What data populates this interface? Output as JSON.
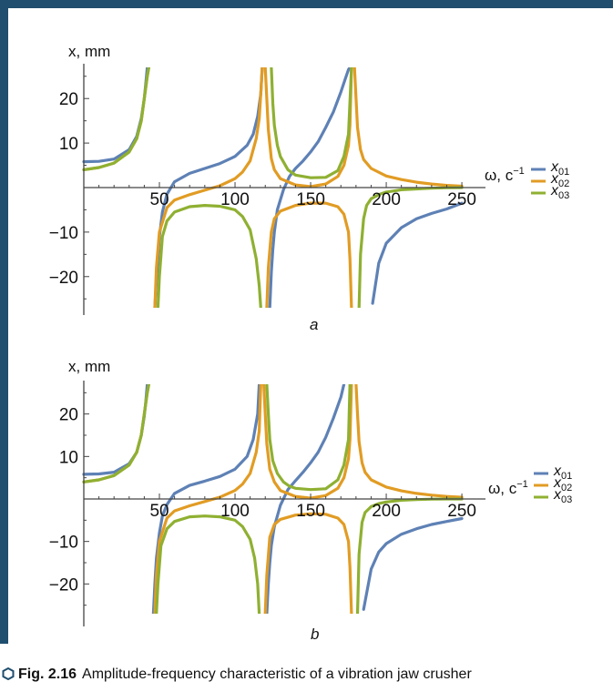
{
  "colors": {
    "frame": "#1f4e6e",
    "series": [
      "#5e81b5",
      "#e19c24",
      "#8fb032"
    ]
  },
  "caption": {
    "label": "Fig. 2.16",
    "text": "Amplitude-frequency characteristic of a vibration jaw crusher"
  },
  "chart_data": [
    {
      "type": "line",
      "panel_label": "a",
      "xlabel": "ω, c",
      "xlabel_sup": "−1",
      "ylabel": "x, mm",
      "xlim": [
        0,
        262
      ],
      "ylim": [
        -27,
        27
      ],
      "xticks": [
        50,
        100,
        150,
        200,
        250
      ],
      "xtick_labels": [
        "50",
        "100",
        "150",
        "200",
        "250"
      ],
      "yticks": [
        -20,
        -10,
        10,
        20
      ],
      "ytick_labels": [
        "−20",
        "−10",
        "10",
        "20"
      ],
      "grid": false,
      "legend_position": "right",
      "series": [
        {
          "name": "x",
          "subscript": "01",
          "color": "#5e81b5",
          "branches": [
            {
              "x": [
                0,
                10,
                20,
                30,
                35,
                38,
                40,
                41,
                42
              ],
              "y": [
                5.8,
                5.9,
                6.4,
                8.5,
                11.5,
                15.5,
                20,
                23.5,
                27
              ]
            },
            {
              "x": [
                47,
                48,
                49,
                50,
                52,
                55,
                60,
                70,
                80,
                90,
                100,
                108,
                112,
                115,
                117,
                118
              ],
              "y": [
                -27,
                -21,
                -16,
                -11,
                -5.5,
                -1.5,
                1.3,
                3.2,
                4.3,
                5.4,
                7,
                9.5,
                12,
                16,
                21,
                27
              ]
            },
            {
              "x": [
                123,
                124,
                125,
                126,
                128,
                132,
                136,
                140,
                145,
                150,
                155,
                160,
                165,
                170,
                173,
                175,
                176
              ],
              "y": [
                -27,
                -19,
                -14,
                -10,
                -5,
                -0.5,
                2.5,
                4.3,
                6,
                8,
                10.3,
                13.5,
                17,
                21.5,
                24.5,
                26.5,
                27
              ]
            },
            {
              "x": [
                191,
                195,
                200,
                210,
                220,
                230,
                240,
                250
              ],
              "y": [
                -26,
                -17,
                -12.5,
                -9,
                -7,
                -5.8,
                -4.8,
                -3.5
              ]
            }
          ]
        },
        {
          "name": "x",
          "subscript": "02",
          "color": "#e19c24",
          "branches": [
            {
              "x": [
                0,
                10,
                20,
                30,
                35,
                38,
                40,
                42,
                43
              ],
              "y": [
                4,
                4.5,
                5.5,
                8,
                11,
                15,
                20,
                25,
                27
              ]
            },
            {
              "x": [
                47,
                48,
                50,
                55,
                60,
                70,
                80,
                90,
                100,
                105,
                110,
                114,
                116,
                117,
                118
              ],
              "y": [
                -27,
                -18,
                -10,
                -4.5,
                -2.8,
                -1.6,
                -0.6,
                0.4,
                2,
                3.5,
                6,
                11,
                15.5,
                21,
                27
              ]
            },
            {
              "x": [
                120,
                121,
                122,
                124,
                126,
                130,
                140,
                150,
                160,
                168,
                172,
                175,
                176,
                177
              ],
              "y": [
                27,
                20,
                13,
                6.5,
                4,
                2,
                0.6,
                0.2,
                0.8,
                2.5,
                5,
                9.5,
                14,
                27
              ]
            },
            {
              "x": [
                121,
                122,
                124,
                126,
                130,
                140,
                150,
                160,
                168,
                172,
                175,
                176,
                177
              ],
              "y": [
                -27,
                -18,
                -10,
                -7,
                -5.3,
                -4,
                -3.5,
                -3.5,
                -4.3,
                -6,
                -10,
                -16,
                -27
              ]
            },
            {
              "x": [
                179,
                180,
                181,
                183,
                185,
                190,
                200,
                210,
                220,
                230,
                240,
                250
              ],
              "y": [
                27,
                20,
                13.5,
                8.5,
                6.3,
                4.3,
                2.6,
                1.8,
                1.2,
                0.8,
                0.5,
                0.3
              ]
            }
          ]
        },
        {
          "name": "x",
          "subscript": "03",
          "color": "#8fb032",
          "branches": [
            {
              "x": [
                0,
                10,
                20,
                30,
                35,
                38,
                40,
                42,
                43
              ],
              "y": [
                4,
                4.5,
                5.5,
                8,
                11,
                15,
                20,
                25,
                27
              ]
            },
            {
              "x": [
                49,
                50,
                52,
                55,
                60,
                70,
                80,
                90,
                100,
                105,
                110,
                114,
                116,
                117
              ],
              "y": [
                -27,
                -20,
                -11,
                -7.5,
                -5.5,
                -4.3,
                -4,
                -4.2,
                -5,
                -6.5,
                -9.5,
                -16,
                -22,
                -27
              ]
            },
            {
              "x": [
                124,
                125,
                126,
                128,
                130,
                135,
                140,
                150,
                160,
                168,
                172,
                175,
                177
              ],
              "y": [
                27,
                19,
                14,
                9.5,
                7,
                4,
                2.8,
                2.2,
                2.3,
                3.8,
                7,
                12,
                27
              ]
            },
            {
              "x": [
                182,
                183,
                185,
                187,
                190,
                195,
                200,
                210,
                220,
                230,
                240,
                250
              ],
              "y": [
                -27,
                -15,
                -7,
                -4,
                -2.5,
                -1.6,
                -1,
                -0.5,
                -0.3,
                -0.15,
                -0.05,
                0
              ]
            }
          ]
        }
      ]
    },
    {
      "type": "line",
      "panel_label": "b",
      "xlabel": "ω, c",
      "xlabel_sup": "−1",
      "ylabel": "x, mm",
      "xlim": [
        0,
        262
      ],
      "ylim": [
        -27,
        27
      ],
      "xticks": [
        50,
        100,
        150,
        200,
        250
      ],
      "xtick_labels": [
        "50",
        "100",
        "150",
        "200",
        "250"
      ],
      "yticks": [
        -20,
        -10,
        10,
        20
      ],
      "ytick_labels": [
        "−20",
        "−10",
        "10",
        "20"
      ],
      "grid": false,
      "legend_position": "right",
      "series": [
        {
          "name": "x",
          "subscript": "01",
          "color": "#5e81b5",
          "branches": [
            {
              "x": [
                0,
                10,
                20,
                30,
                35,
                38,
                40,
                41,
                42
              ],
              "y": [
                5.8,
                5.9,
                6.3,
                8.3,
                11,
                15,
                19.5,
                23,
                27
              ]
            },
            {
              "x": [
                46,
                47,
                48,
                50,
                52,
                55,
                60,
                70,
                80,
                90,
                100,
                108,
                112,
                115,
                116
              ],
              "y": [
                -27,
                -20,
                -14,
                -8,
                -4,
                -1.3,
                1.3,
                3.2,
                4.2,
                5.3,
                7,
                10,
                14,
                20,
                27
              ]
            },
            {
              "x": [
                121,
                122,
                123,
                124,
                126,
                130,
                135,
                140,
                145,
                150,
                155,
                160,
                165,
                170,
                172
              ],
              "y": [
                -27,
                -20,
                -15,
                -11,
                -6.5,
                -1.5,
                2.2,
                4.3,
                6.3,
                8.5,
                11,
                14.5,
                19,
                24,
                27
              ]
            },
            {
              "x": [
                185,
                190,
                195,
                200,
                210,
                220,
                230,
                240,
                250
              ],
              "y": [
                -26,
                -16.5,
                -12.5,
                -10.5,
                -8.3,
                -7,
                -6,
                -5.3,
                -4.6
              ]
            }
          ]
        },
        {
          "name": "x",
          "subscript": "02",
          "color": "#e19c24",
          "branches": [
            {
              "x": [
                0,
                10,
                20,
                30,
                35,
                38,
                40,
                42,
                43
              ],
              "y": [
                4,
                4.5,
                5.5,
                8,
                11,
                15,
                20,
                25,
                27
              ]
            },
            {
              "x": [
                47,
                48,
                50,
                55,
                60,
                70,
                80,
                90,
                100,
                105,
                110,
                114,
                116,
                117
              ],
              "y": [
                -27,
                -18,
                -10,
                -4.5,
                -2.8,
                -1.6,
                -0.6,
                0.4,
                2,
                3.5,
                6,
                11,
                16,
                27
              ]
            },
            {
              "x": [
                119,
                120,
                121,
                123,
                126,
                130,
                140,
                150,
                160,
                168,
                172,
                175,
                176,
                177
              ],
              "y": [
                27,
                20,
                13,
                7,
                4,
                2,
                0.6,
                0.2,
                0.8,
                2.5,
                5,
                9.5,
                14,
                27
              ]
            },
            {
              "x": [
                120,
                121,
                123,
                126,
                130,
                140,
                150,
                160,
                168,
                172,
                175,
                176,
                177
              ],
              "y": [
                -27,
                -18,
                -9,
                -6,
                -4.8,
                -3.8,
                -3.5,
                -3.6,
                -4.5,
                -6,
                -10,
                -16,
                -27
              ]
            },
            {
              "x": [
                180,
                181,
                182,
                184,
                186,
                190,
                200,
                210,
                220,
                230,
                240,
                250
              ],
              "y": [
                27,
                20,
                13.5,
                8.5,
                6.3,
                4.5,
                2.8,
                1.9,
                1.3,
                0.9,
                0.6,
                0.4
              ]
            }
          ]
        },
        {
          "name": "x",
          "subscript": "03",
          "color": "#8fb032",
          "branches": [
            {
              "x": [
                0,
                10,
                20,
                30,
                35,
                38,
                40,
                42,
                43
              ],
              "y": [
                4,
                4.5,
                5.5,
                8,
                11,
                15,
                20,
                25,
                27
              ]
            },
            {
              "x": [
                48,
                49,
                51,
                55,
                60,
                70,
                80,
                90,
                100,
                105,
                110,
                113,
                115,
                116
              ],
              "y": [
                -27,
                -20,
                -11,
                -7,
                -5.3,
                -4.2,
                -4,
                -4.2,
                -5,
                -6.5,
                -9.5,
                -14,
                -20,
                -27
              ]
            },
            {
              "x": [
                121,
                122,
                123,
                125,
                128,
                132,
                136,
                140,
                150,
                160,
                168,
                172,
                175,
                176
              ],
              "y": [
                27,
                20,
                14,
                9,
                6,
                4,
                3,
                2.5,
                2.2,
                2.4,
                4.5,
                8,
                14,
                27
              ]
            },
            {
              "x": [
                181,
                182,
                184,
                186,
                190,
                195,
                200,
                210,
                220,
                230,
                240,
                250
              ],
              "y": [
                -27,
                -13,
                -5.5,
                -3.2,
                -1.8,
                -1.1,
                -0.7,
                -0.3,
                -0.15,
                -0.05,
                0,
                0
              ]
            }
          ]
        }
      ]
    }
  ]
}
